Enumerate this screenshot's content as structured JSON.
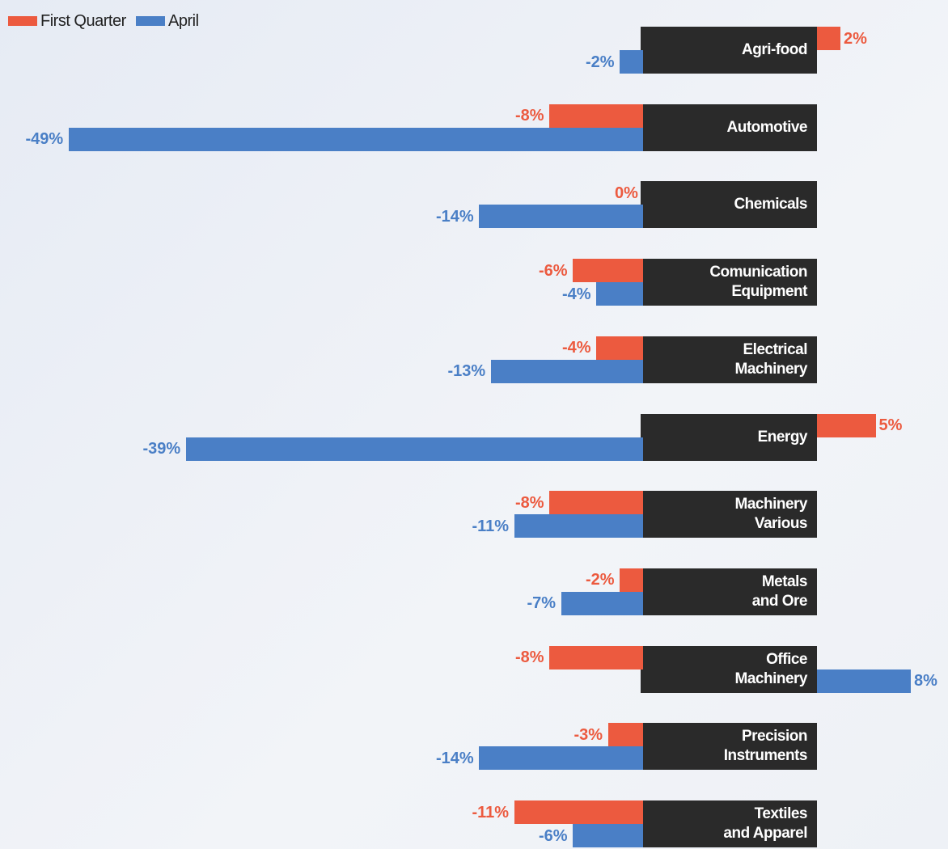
{
  "chart_data": {
    "type": "bar",
    "categories": [
      "Agri-food",
      "Automotive",
      "Chemicals",
      "Comunication\nEquipment",
      "Electrical\nMachinery",
      "Energy",
      "Machinery\nVarious",
      "Metals\nand Ore",
      "Office\nMachinery",
      "Precision\nInstruments",
      "Textiles\nand Apparel"
    ],
    "series": [
      {
        "name": "First Quarter",
        "color": "#ec5a3f",
        "values": [
          2,
          -8,
          0,
          -6,
          -4,
          5,
          -8,
          -2,
          -8,
          -3,
          -11
        ],
        "value_labels": [
          "2%",
          "-8%",
          "0%",
          "-6%",
          "-4%",
          "5%",
          "-8%",
          "-2%",
          "-8%",
          "-3%",
          "-11%"
        ]
      },
      {
        "name": "April",
        "color": "#4a7fc6",
        "values": [
          -2,
          -49,
          -14,
          -4,
          -13,
          -39,
          -11,
          -7,
          8,
          -14,
          -6
        ],
        "value_labels": [
          "-2%",
          "-49%",
          "-14%",
          "-4%",
          "-13%",
          "-39%",
          "-11%",
          "-7%",
          "8%",
          "-14%",
          "-6%"
        ]
      }
    ]
  }
}
